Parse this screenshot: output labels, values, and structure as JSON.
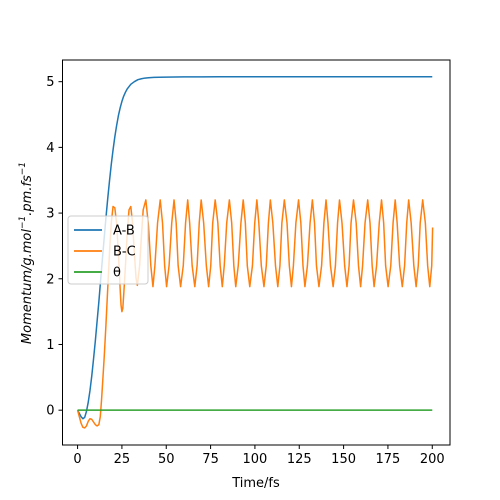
{
  "chart_data": {
    "type": "line",
    "title": "",
    "xlabel": "Time/fs",
    "ylabel_main": "Momentum/g.mol",
    "ylabel_unit": ".pm.fs",
    "ylabel_exp": "−1",
    "xlim": [
      -8.5,
      210
    ],
    "ylim": [
      -0.53,
      5.33
    ],
    "xticks": [
      0,
      25,
      50,
      75,
      100,
      125,
      150,
      175,
      200
    ],
    "yticks": [
      0,
      1,
      2,
      3,
      4,
      5
    ],
    "legend": "center-left",
    "grid": false,
    "series": [
      {
        "name": "A-B",
        "color": "#1f77b4",
        "x": [
          0,
          1,
          2,
          3,
          4,
          5,
          6,
          7,
          8,
          9,
          10,
          11,
          12,
          13,
          14,
          15,
          16,
          17,
          18,
          19,
          20,
          21,
          22,
          23,
          24,
          25,
          26,
          27,
          28,
          30,
          32,
          34,
          36,
          38,
          40,
          43,
          46,
          50,
          55,
          60,
          70,
          80,
          100,
          125,
          150,
          175,
          200
        ],
        "y": [
          0,
          -0.05,
          -0.1,
          -0.13,
          -0.11,
          -0.02,
          0.12,
          0.3,
          0.52,
          0.78,
          1.05,
          1.35,
          1.65,
          1.98,
          2.3,
          2.62,
          2.93,
          3.22,
          3.49,
          3.74,
          3.96,
          4.16,
          4.33,
          4.48,
          4.6,
          4.7,
          4.78,
          4.84,
          4.89,
          4.96,
          5.0,
          5.03,
          5.045,
          5.055,
          5.06,
          5.065,
          5.068,
          5.07,
          5.072,
          5.073,
          5.074,
          5.075,
          5.075,
          5.075,
          5.075,
          5.075,
          5.075
        ]
      },
      {
        "name": "B-C",
        "color": "#ff7f0e",
        "x": [
          0,
          1,
          2,
          3,
          4,
          5,
          6,
          7,
          8,
          9,
          10,
          11,
          12,
          12.8,
          13.5,
          14.2,
          15,
          16,
          17,
          18,
          19,
          20,
          21,
          22,
          23,
          24,
          24.5,
          25,
          25.5,
          26,
          27,
          28,
          29,
          30,
          31,
          32,
          33,
          33.7,
          35,
          36,
          37,
          38.5,
          40,
          41.3,
          42.5,
          43.6,
          45.1,
          46.6,
          47.9,
          49.1,
          50.2,
          51.6,
          53.1,
          54.4,
          55.6,
          56.7,
          58.1,
          59.6,
          60.9,
          62.1,
          63.2,
          64.6,
          66.1,
          67.4,
          68.6,
          69.7,
          71.1,
          72.6,
          73.9,
          75.1,
          76.2,
          77.6,
          79.1,
          80.4,
          81.6,
          82.7,
          84.1,
          85.6,
          86.9,
          88.1,
          89.2,
          90.6,
          92.1,
          93.4,
          94.6,
          95.7,
          97.1,
          98.6,
          99.9,
          101.1,
          102.2,
          103.6,
          105.1,
          106.4,
          107.6,
          108.7,
          110.1,
          111.6,
          112.9,
          114.1,
          115.2,
          116.6,
          118.1,
          119.4,
          120.6,
          121.7,
          123.1,
          124.6,
          125.9,
          127.1,
          128.2,
          129.6,
          131.1,
          132.4,
          133.6,
          134.7,
          136.1,
          137.6,
          138.9,
          140.1,
          141.2,
          142.6,
          144.1,
          145.4,
          146.6,
          147.7,
          149.1,
          150.6,
          151.9,
          153.1,
          154.2,
          155.6,
          157.1,
          158.4,
          159.6,
          160.7,
          162.1,
          163.6,
          164.9,
          166.1,
          167.2,
          168.6,
          170.1,
          171.4,
          172.6,
          173.7,
          175.1,
          176.6,
          177.9,
          179.1,
          180.2,
          181.6,
          183.1,
          184.4,
          185.6,
          186.7,
          188.1,
          189.6,
          190.9,
          192.1,
          193.2,
          194.6,
          196.1,
          197.4,
          198.6,
          199.7,
          200.2
        ],
        "y": [
          0,
          -0.1,
          -0.2,
          -0.26,
          -0.27,
          -0.24,
          -0.17,
          -0.13,
          -0.14,
          -0.18,
          -0.22,
          -0.24,
          -0.22,
          -0.1,
          0.15,
          0.45,
          0.8,
          1.3,
          1.85,
          2.4,
          2.85,
          3.1,
          3.08,
          2.85,
          2.4,
          1.85,
          1.6,
          1.5,
          1.55,
          1.75,
          2.2,
          2.7,
          3.05,
          3.1,
          2.85,
          2.4,
          2.0,
          1.9,
          2.2,
          2.65,
          3.05,
          3.2,
          2.8,
          2.2,
          1.88,
          2.2,
          2.85,
          3.2,
          2.85,
          2.2,
          1.88,
          2.2,
          2.85,
          3.2,
          2.85,
          2.2,
          1.88,
          2.2,
          2.85,
          3.2,
          2.85,
          2.2,
          1.88,
          2.2,
          2.85,
          3.2,
          2.85,
          2.2,
          1.88,
          2.2,
          2.85,
          3.2,
          2.85,
          2.2,
          1.88,
          2.2,
          2.85,
          3.2,
          2.85,
          2.2,
          1.88,
          2.2,
          2.85,
          3.2,
          2.85,
          2.2,
          1.88,
          2.2,
          2.85,
          3.2,
          2.85,
          2.2,
          1.88,
          2.2,
          2.85,
          3.2,
          2.85,
          2.2,
          1.88,
          2.2,
          2.85,
          3.2,
          2.85,
          2.2,
          1.88,
          2.2,
          2.85,
          3.2,
          2.85,
          2.2,
          1.88,
          2.2,
          2.85,
          3.2,
          2.85,
          2.2,
          1.88,
          2.2,
          2.85,
          3.2,
          2.85,
          2.2,
          1.88,
          2.2,
          2.85,
          3.2,
          2.85,
          2.2,
          1.88,
          2.2,
          2.85,
          3.2,
          2.85,
          2.2,
          1.88,
          2.2,
          2.85,
          3.2,
          2.85,
          2.2,
          1.88,
          2.2,
          2.85,
          3.2,
          2.85,
          2.2,
          1.88,
          2.2,
          2.85,
          3.2,
          2.85,
          2.2,
          1.88,
          2.2,
          2.85,
          3.2,
          2.85,
          2.2,
          1.88,
          2.2,
          2.85,
          3.2,
          2.85,
          2.2,
          1.88,
          2.2,
          2.78
        ]
      },
      {
        "name": "θ",
        "color": "#2ca02c",
        "x": [
          0,
          200
        ],
        "y": [
          0,
          0
        ]
      }
    ]
  }
}
